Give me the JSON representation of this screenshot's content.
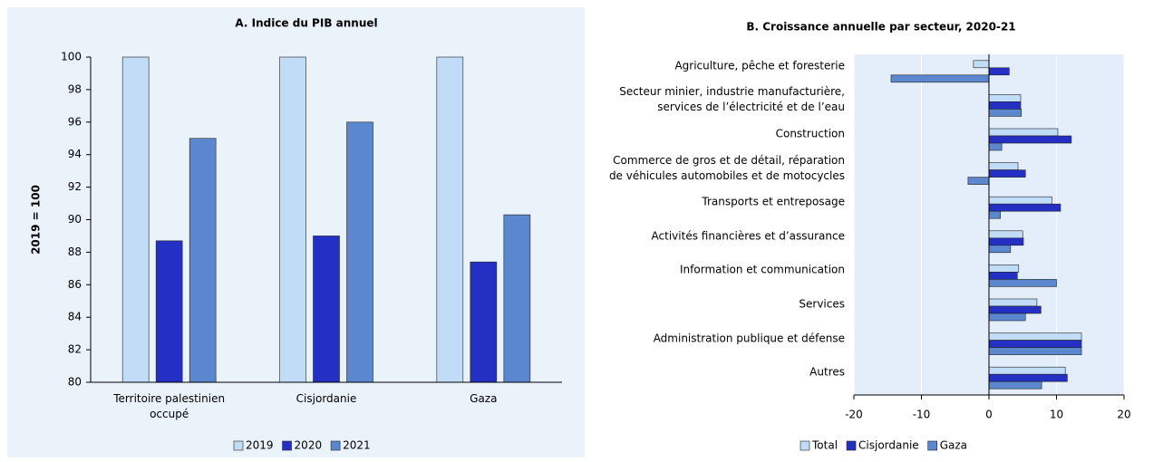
{
  "chart_data": [
    {
      "type": "bar",
      "title": "A. Indice du PIB annuel",
      "ylabel": "2019 = 100",
      "categories": [
        "Territoire palestinien\noccupé",
        "Cisjordanie",
        "Gaza"
      ],
      "series": [
        {
          "name": "2019",
          "color": "#c0dcf7",
          "values": [
            100,
            100,
            100
          ]
        },
        {
          "name": "2020",
          "color": "#2430c4",
          "values": [
            88.7,
            89,
            87.4
          ]
        },
        {
          "name": "2021",
          "color": "#5b87cf",
          "values": [
            95,
            96,
            90.3
          ]
        }
      ],
      "ylim": [
        80,
        100
      ],
      "yticks": [
        80,
        82,
        84,
        86,
        88,
        90,
        92,
        94,
        96,
        98,
        100
      ]
    },
    {
      "type": "barh",
      "title": "B. Croissance annuelle par secteur, 2020-21",
      "categories": [
        "Agriculture, pêche et foresterie",
        "Secteur minier, industrie manufacturière,\nservices de l’électricité et de l’eau",
        "Construction",
        "Commerce de gros et de détail, réparation\nde véhicules automobiles et de motocycles",
        "Transports et entreposage",
        "Activités financières et d’assurance",
        "Information et communication",
        "Services",
        "Administration publique et défense",
        "Autres"
      ],
      "series": [
        {
          "name": "Total",
          "color": "#c0dcf7",
          "values": [
            -2.3,
            4.7,
            10.2,
            4.3,
            9.3,
            5,
            4.4,
            7.1,
            13.7,
            11.3
          ]
        },
        {
          "name": "Cisjordanie",
          "color": "#2430c4",
          "values": [
            3,
            4.7,
            12.2,
            5.4,
            10.6,
            5.1,
            4.2,
            7.7,
            13.7,
            11.6
          ]
        },
        {
          "name": "Gaza",
          "color": "#5b87cf",
          "values": [
            -14.5,
            4.8,
            1.9,
            -3.1,
            1.7,
            3.2,
            10,
            5.4,
            13.7,
            7.8
          ]
        }
      ],
      "xlim": [
        -20,
        20
      ],
      "xticks": [
        -20,
        -10,
        0,
        10,
        20
      ],
      "grid": true
    }
  ]
}
